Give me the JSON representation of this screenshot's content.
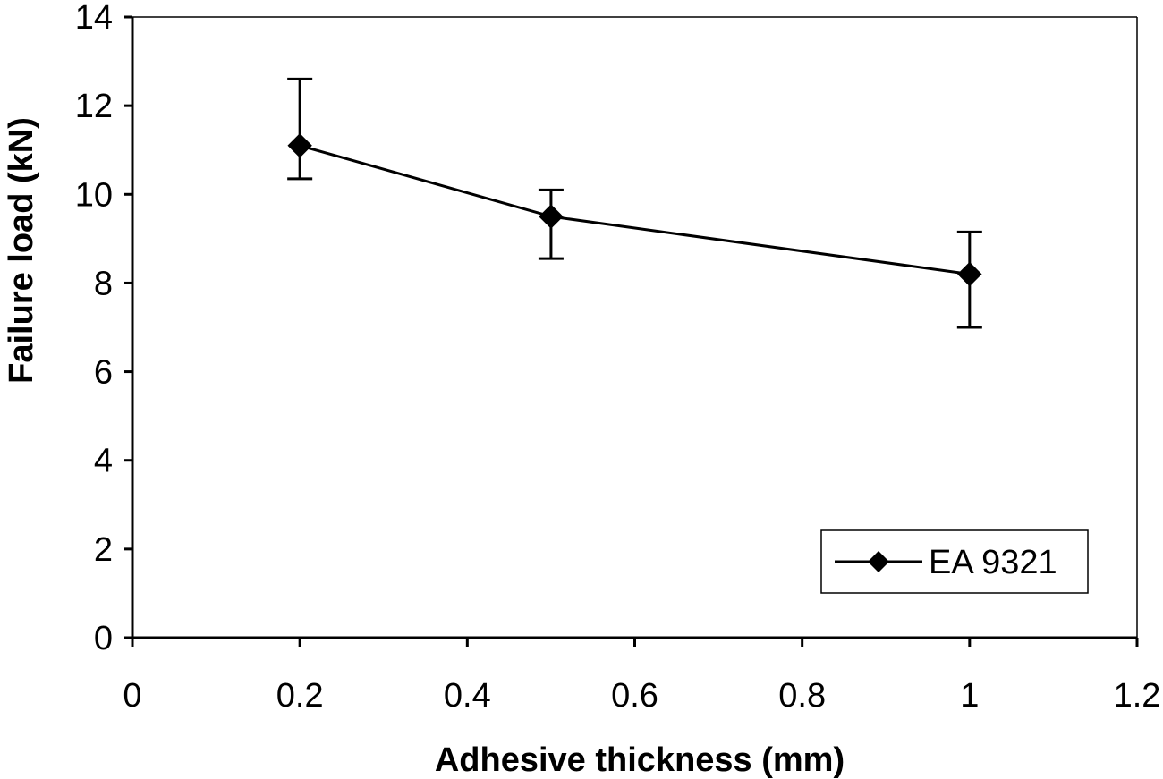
{
  "chart_data": {
    "type": "line",
    "title": "",
    "xlabel": "Adhesive thickness (mm)",
    "ylabel": "Failure load (kN)",
    "xlim": [
      0,
      1.2
    ],
    "ylim": [
      0,
      14
    ],
    "xticks": [
      0,
      0.2,
      0.4,
      0.6,
      0.8,
      1,
      1.2
    ],
    "xtick_labels": [
      "0",
      "0.2",
      "0.4",
      "0.6",
      "0.8",
      "1",
      "1.2"
    ],
    "yticks": [
      0,
      2,
      4,
      6,
      8,
      10,
      12,
      14
    ],
    "ytick_labels": [
      "0",
      "2",
      "4",
      "6",
      "8",
      "10",
      "12",
      "14"
    ],
    "grid": false,
    "legend_position": "bottom-right",
    "series": [
      {
        "name": "EA 9321",
        "marker": "diamond",
        "color": "#000000",
        "x": [
          0.2,
          0.5,
          1
        ],
        "y": [
          11.1,
          9.5,
          8.2
        ],
        "error_low": [
          10.35,
          8.55,
          7.0
        ],
        "error_high": [
          12.6,
          10.1,
          9.15
        ]
      }
    ]
  }
}
